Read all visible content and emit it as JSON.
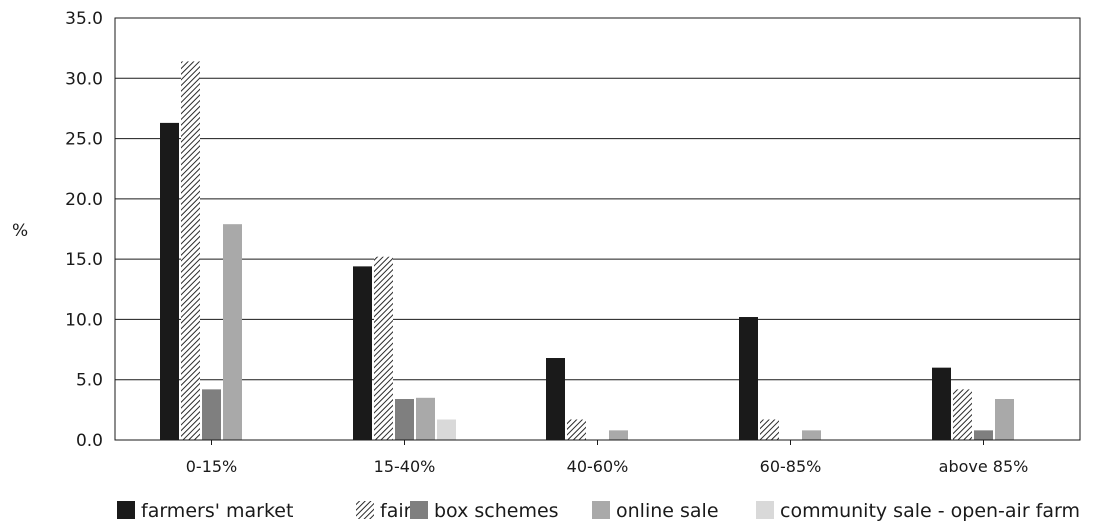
{
  "chart_data": {
    "type": "bar",
    "ylabel": "%",
    "ylim": [
      0,
      35
    ],
    "ytick_step": 5,
    "categories": [
      "0-15%",
      "15-40%",
      "40-60%",
      "60-85%",
      "above 85%"
    ],
    "series": [
      {
        "name": "farmers' market",
        "values": [
          26.3,
          14.4,
          6.8,
          10.2,
          6.0
        ],
        "color": "#1a1a1a",
        "pattern": "solid"
      },
      {
        "name": "fair",
        "values": [
          31.4,
          15.2,
          1.7,
          1.7,
          4.2
        ],
        "color": "#ffffff",
        "pattern": "hatch"
      },
      {
        "name": "box schemes",
        "values": [
          4.2,
          3.4,
          0,
          0,
          0.8
        ],
        "color": "#7f7f7f",
        "pattern": "solid"
      },
      {
        "name": "online sale",
        "values": [
          17.9,
          3.5,
          0.8,
          0.8,
          3.4
        ],
        "color": "#a9a9a9",
        "pattern": "solid"
      },
      {
        "name": "community sale - open-air farm",
        "values": [
          0,
          1.7,
          0,
          0,
          0
        ],
        "color": "#d9d9d9",
        "pattern": "solid"
      }
    ],
    "grid": true,
    "legend_position": "bottom"
  }
}
